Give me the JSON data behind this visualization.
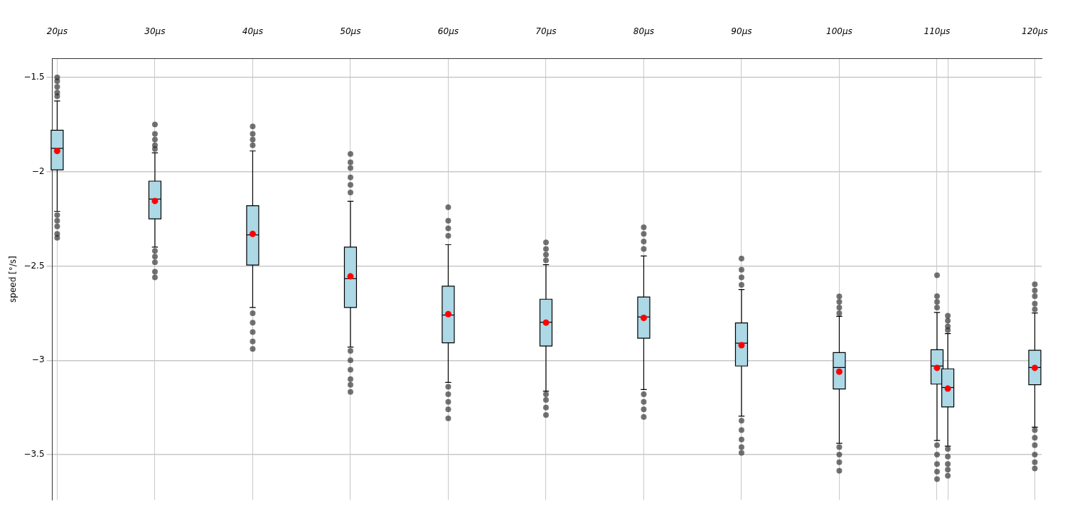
{
  "chart_data": {
    "type": "box",
    "ylabel": "speed [°/s]",
    "grid": true,
    "x": [
      20,
      30,
      40,
      50,
      60,
      70,
      80,
      90,
      100,
      110,
      111.1,
      120
    ],
    "xlim": [
      19.5,
      120.7
    ],
    "xticks": [
      {
        "value": 20,
        "label": "20μs"
      },
      {
        "value": 30,
        "label": "30μs"
      },
      {
        "value": 40,
        "label": "40μs"
      },
      {
        "value": 50,
        "label": "50μs"
      },
      {
        "value": 60,
        "label": "60μs"
      },
      {
        "value": 70,
        "label": "70μs"
      },
      {
        "value": 80,
        "label": "80μs"
      },
      {
        "value": 90,
        "label": "90μs"
      },
      {
        "value": 100,
        "label": "100μs"
      },
      {
        "value": 110,
        "label": "110μs"
      },
      {
        "value": 111.1,
        "label": null
      },
      {
        "value": 120,
        "label": "120μs"
      }
    ],
    "ylim": [
      -3.74,
      -1.4
    ],
    "yticks": [
      -1.5,
      -2.0,
      -2.5,
      -3.0,
      -3.5
    ],
    "series": [
      {
        "color": "#add8e6",
        "boxes": [
          {
            "low": -2.21,
            "q1": -1.99,
            "median": -1.876,
            "q3": -1.78,
            "high": -1.625,
            "mean": -1.89,
            "outliers": [
              -1.5,
              -1.52,
              -1.55,
              -1.58,
              -1.6,
              -2.23,
              -2.26,
              -2.29,
              -2.33,
              -2.35
            ]
          },
          {
            "low": -2.4,
            "q1": -2.25,
            "median": -2.145,
            "q3": -2.05,
            "high": -1.9,
            "mean": -2.155,
            "outliers": [
              -1.75,
              -1.8,
              -1.83,
              -1.86,
              -1.88,
              -2.42,
              -2.45,
              -2.48,
              -2.53,
              -2.56
            ]
          },
          {
            "low": -2.72,
            "q1": -2.495,
            "median": -2.335,
            "q3": -2.18,
            "high": -1.89,
            "mean": -2.33,
            "outliers": [
              -1.76,
              -1.8,
              -1.83,
              -1.86,
              -2.75,
              -2.8,
              -2.85,
              -2.9,
              -2.94
            ]
          },
          {
            "low": -2.93,
            "q1": -2.72,
            "median": -2.567,
            "q3": -2.4,
            "high": -2.157,
            "mean": -2.555,
            "outliers": [
              -1.906,
              -1.95,
              -1.98,
              -2.03,
              -2.07,
              -2.11,
              -2.95,
              -3.0,
              -3.05,
              -3.1,
              -3.13,
              -3.167
            ]
          },
          {
            "low": -3.117,
            "q1": -2.907,
            "median": -2.76,
            "q3": -2.607,
            "high": -2.387,
            "mean": -2.755,
            "outliers": [
              -2.188,
              -2.26,
              -2.3,
              -2.34,
              -3.14,
              -3.18,
              -3.22,
              -3.26,
              -3.308
            ]
          },
          {
            "low": -3.163,
            "q1": -2.924,
            "median": -2.798,
            "q3": -2.676,
            "high": -2.493,
            "mean": -2.8,
            "outliers": [
              -2.375,
              -2.41,
              -2.44,
              -2.47,
              -3.18,
              -3.21,
              -3.25,
              -3.29
            ]
          },
          {
            "low": -3.155,
            "q1": -2.883,
            "median": -2.77,
            "q3": -2.664,
            "high": -2.447,
            "mean": -2.775,
            "outliers": [
              -2.295,
              -2.33,
              -2.37,
              -2.41,
              -3.18,
              -3.22,
              -3.26,
              -3.3
            ]
          },
          {
            "low": -3.296,
            "q1": -3.03,
            "median": -2.909,
            "q3": -2.802,
            "high": -2.625,
            "mean": -2.92,
            "outliers": [
              -2.46,
              -2.52,
              -2.56,
              -2.6,
              -3.32,
              -3.37,
              -3.42,
              -3.46,
              -3.49
            ]
          },
          {
            "low": -3.44,
            "q1": -3.152,
            "median": -3.038,
            "q3": -2.959,
            "high": -2.767,
            "mean": -3.06,
            "outliers": [
              -2.661,
              -2.69,
              -2.72,
              -2.75,
              -3.46,
              -3.5,
              -3.54,
              -3.585
            ]
          },
          {
            "low": -3.425,
            "q1": -3.126,
            "median": -3.03,
            "q3": -2.944,
            "high": -2.746,
            "mean": -3.04,
            "outliers": [
              -2.549,
              -2.66,
              -2.69,
              -2.72,
              -3.45,
              -3.5,
              -3.55,
              -3.59,
              -3.63
            ]
          },
          {
            "low": -3.455,
            "q1": -3.247,
            "median": -3.144,
            "q3": -3.045,
            "high": -2.858,
            "mean": -3.15,
            "outliers": [
              -2.764,
              -2.79,
              -2.82,
              -2.84,
              -3.47,
              -3.51,
              -3.55,
              -3.58,
              -3.612
            ]
          },
          {
            "low": -3.354,
            "q1": -3.129,
            "median": -3.038,
            "q3": -2.947,
            "high": -2.749,
            "mean": -3.04,
            "outliers": [
              -2.597,
              -2.63,
              -2.66,
              -2.7,
              -2.73,
              -3.37,
              -3.41,
              -3.45,
              -3.5,
              -3.54,
              -3.573
            ]
          }
        ]
      }
    ]
  }
}
